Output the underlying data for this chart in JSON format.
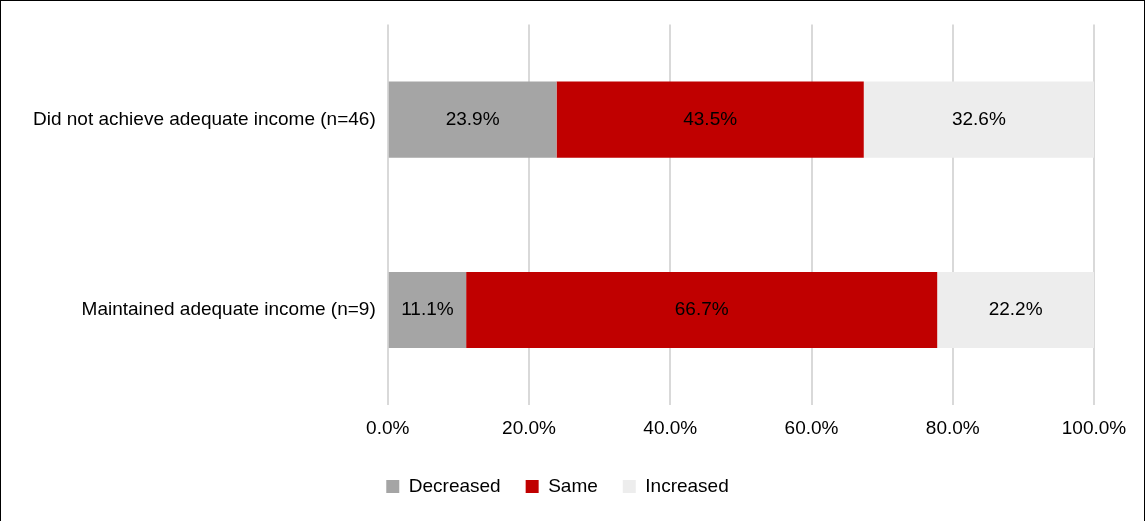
{
  "chart_data": {
    "type": "bar",
    "orientation": "horizontal",
    "stacked": true,
    "categories": [
      "Did not achieve adequate income (n=46)",
      "Maintained adequate income (n=9)"
    ],
    "series": [
      {
        "name": "Decreased",
        "color": "#a5a5a5",
        "values": [
          23.9,
          11.1
        ],
        "value_labels": [
          "23.9%",
          "11.1%"
        ]
      },
      {
        "name": "Same",
        "color": "#c00000",
        "values": [
          43.5,
          66.7
        ],
        "value_labels": [
          "43.5%",
          "66.7%"
        ]
      },
      {
        "name": "Increased",
        "color": "#ededed",
        "values": [
          32.6,
          22.2
        ],
        "value_labels": [
          "32.6%",
          "22.2%"
        ]
      }
    ],
    "xlim": [
      0,
      100
    ],
    "xticks": [
      {
        "value": 0,
        "label": "0.0%"
      },
      {
        "value": 20,
        "label": "20.0%"
      },
      {
        "value": 40,
        "label": "40.0%"
      },
      {
        "value": 60,
        "label": "60.0%"
      },
      {
        "value": 80,
        "label": "80.0%"
      },
      {
        "value": 100,
        "label": "100.0%"
      }
    ],
    "grid": "x",
    "legend": "bottom"
  }
}
